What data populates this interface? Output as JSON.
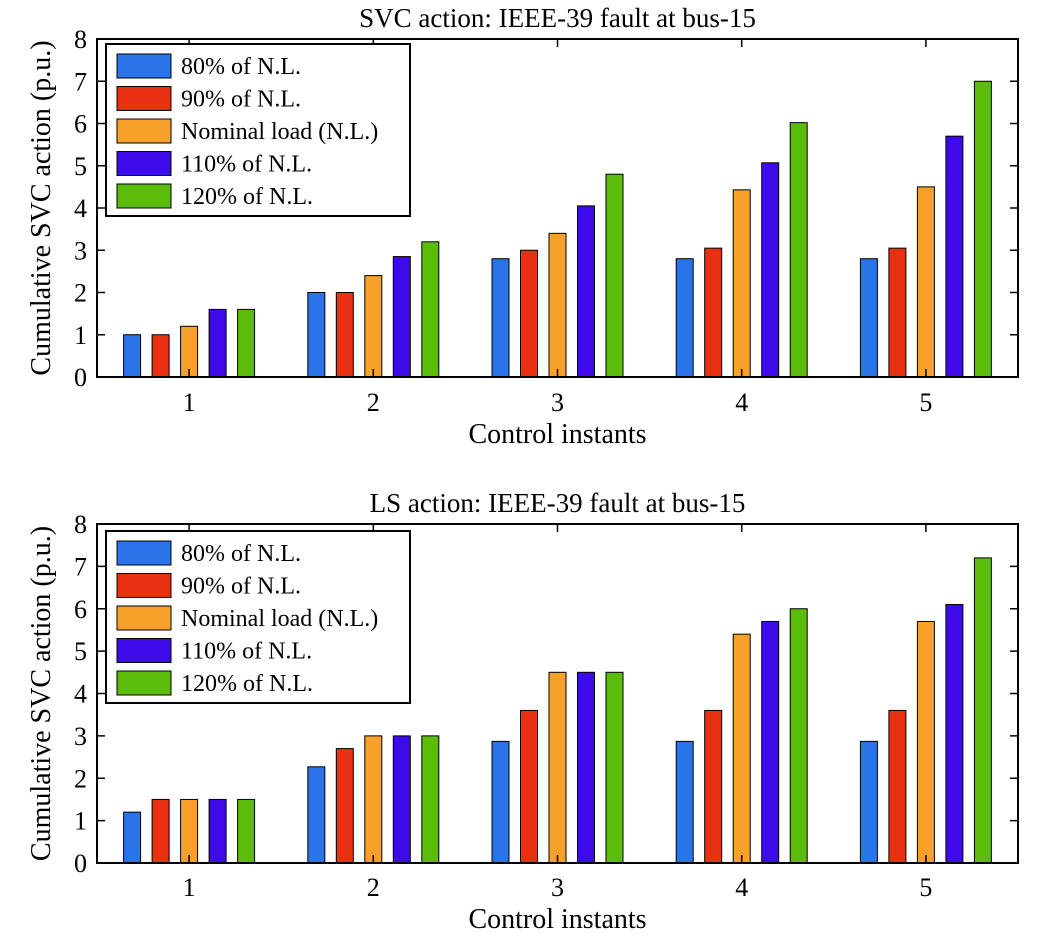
{
  "chart_data": [
    {
      "type": "bar",
      "title": "SVC action: IEEE-39 fault at bus-15",
      "xlabel": "Control instants",
      "ylabel": "Cumulative SVC action (p.u.)",
      "categories": [
        "1",
        "2",
        "3",
        "4",
        "5"
      ],
      "ylim": [
        0,
        8
      ],
      "yticks": [
        "0",
        "1",
        "2",
        "3",
        "4",
        "5",
        "6",
        "7",
        "8"
      ],
      "legend_position": "top-left",
      "series": [
        {
          "name": "80% of N.L.",
          "color": "#2b73e8",
          "values": [
            1.0,
            2.0,
            2.8,
            2.8,
            2.8
          ]
        },
        {
          "name": "90% of N.L.",
          "color": "#e83013",
          "values": [
            1.0,
            2.0,
            3.0,
            3.05,
            3.05
          ]
        },
        {
          "name": "Nominal load (N.L.)",
          "color": "#f5a12a",
          "values": [
            1.2,
            2.4,
            3.4,
            4.43,
            4.5
          ]
        },
        {
          "name": "110% of N.L.",
          "color": "#3d0ae8",
          "values": [
            1.6,
            2.85,
            4.05,
            5.07,
            5.7
          ]
        },
        {
          "name": "120% of N.L.",
          "color": "#5cbc0c",
          "values": [
            1.6,
            3.2,
            4.8,
            6.02,
            7.0
          ]
        }
      ]
    },
    {
      "type": "bar",
      "title": "LS action: IEEE-39 fault at bus-15",
      "xlabel": "Control instants",
      "ylabel": "Cumulative SVC action (p.u.)",
      "categories": [
        "1",
        "2",
        "3",
        "4",
        "5"
      ],
      "ylim": [
        0,
        8
      ],
      "yticks": [
        "0",
        "1",
        "2",
        "3",
        "4",
        "5",
        "6",
        "7",
        "8"
      ],
      "legend_position": "top-left",
      "series": [
        {
          "name": "80% of N.L.",
          "color": "#2b73e8",
          "values": [
            1.2,
            2.27,
            2.87,
            2.87,
            2.87
          ]
        },
        {
          "name": "90% of N.L.",
          "color": "#e83013",
          "values": [
            1.5,
            2.7,
            3.6,
            3.6,
            3.6
          ]
        },
        {
          "name": "Nominal load (N.L.)",
          "color": "#f5a12a",
          "values": [
            1.5,
            3.0,
            4.5,
            5.4,
            5.7
          ]
        },
        {
          "name": "110% of N.L.",
          "color": "#3d0ae8",
          "values": [
            1.5,
            3.0,
            4.5,
            5.7,
            6.1
          ]
        },
        {
          "name": "120% of N.L.",
          "color": "#5cbc0c",
          "values": [
            1.5,
            3.0,
            4.5,
            6.0,
            7.2
          ]
        }
      ]
    }
  ]
}
